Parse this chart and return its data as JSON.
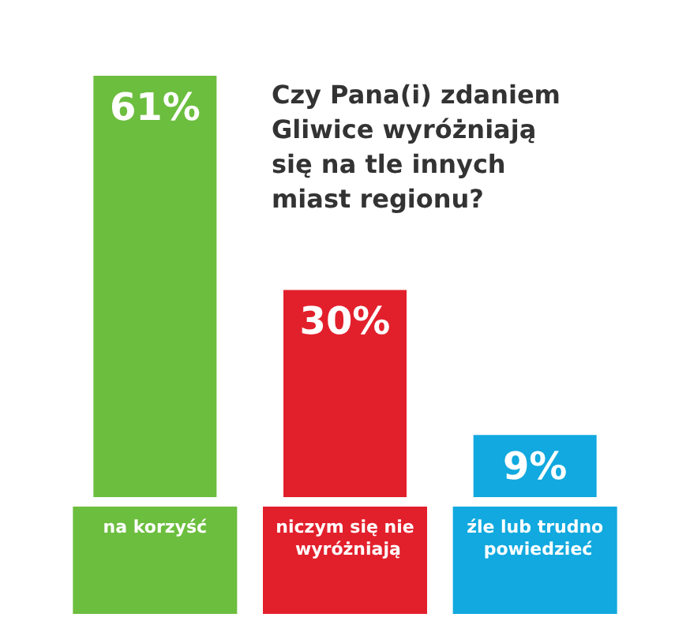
{
  "chart_data": {
    "type": "bar",
    "title": "Czy Pana(i) zdaniem Gliwice wyróżniają się na tle innych miast regionu?",
    "categories": [
      "na korzyść",
      "niczym się nie wyróżniają",
      "źle lub trudno powiedzieć"
    ],
    "values": [
      61,
      30,
      9
    ],
    "value_labels": [
      "61%",
      "30%",
      "9%"
    ],
    "colors": [
      "#6cbe3e",
      "#e2202c",
      "#11a9df"
    ]
  }
}
